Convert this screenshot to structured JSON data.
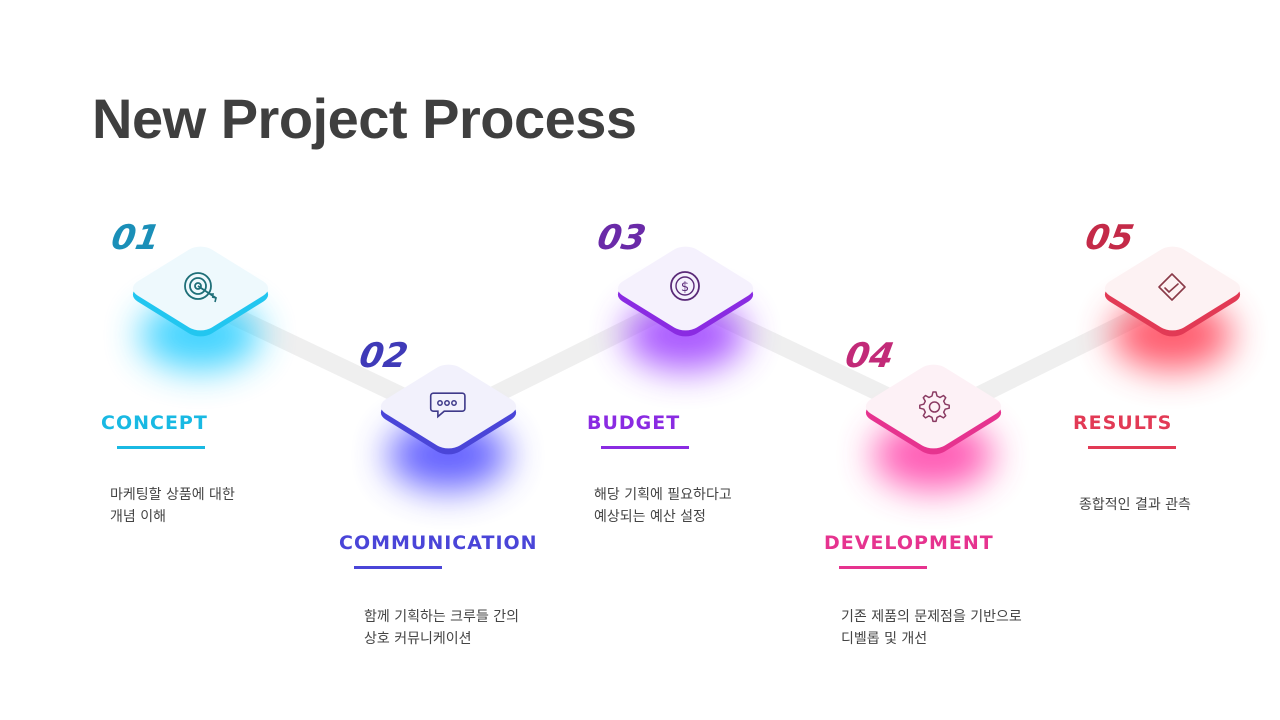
{
  "title": "New Project Process",
  "steps": [
    {
      "num": "01",
      "label": "CONCEPT",
      "desc": "마케팅할 상품에 대한\n개념 이해",
      "color": "#19b9e3",
      "icon": "target-icon"
    },
    {
      "num": "02",
      "label": "COMMUNICATION",
      "desc": "함께 기획하는 크루들 간의\n상호 커뮤니케이션",
      "color": "#4a45d8",
      "icon": "chat-bubble-icon"
    },
    {
      "num": "03",
      "label": "BUDGET",
      "desc": "해당 기획에 필요하다고\n예상되는 예산 설정",
      "color": "#8a2be2",
      "icon": "dollar-coin-icon"
    },
    {
      "num": "04",
      "label": "DEVELOPMENT",
      "desc": "기존 제품의 문제점을 기반으로\n디벨롭 및 개선",
      "color": "#e6338f",
      "icon": "gear-icon"
    },
    {
      "num": "05",
      "label": "RESULTS",
      "desc": "종합적인 결과 관측",
      "color": "#e23a55",
      "icon": "checkmark-screen-icon"
    }
  ]
}
